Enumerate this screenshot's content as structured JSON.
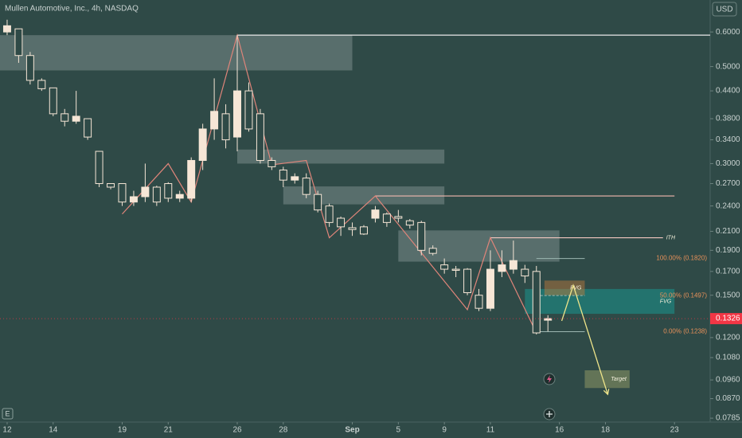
{
  "chart_data": {
    "type": "candlestick",
    "title": "Mullen Automotive, Inc., 4h, NASDAQ",
    "currency": "USD",
    "x": [
      0,
      1,
      2,
      3,
      4,
      5,
      6,
      7,
      8,
      9,
      10,
      11,
      12,
      13,
      14,
      15,
      16,
      17,
      18,
      19,
      20,
      21,
      22,
      23,
      24,
      25,
      26,
      27,
      28,
      29,
      30,
      31,
      32,
      33,
      34,
      35,
      36,
      37,
      38,
      39,
      40,
      41,
      42,
      43,
      44,
      45,
      46,
      47
    ],
    "open": [
      0.6,
      0.61,
      0.53,
      0.465,
      0.447,
      0.39,
      0.375,
      0.38,
      0.32,
      0.27,
      0.27,
      0.245,
      0.252,
      0.265,
      0.27,
      0.25,
      0.25,
      0.305,
      0.36,
      0.39,
      0.345,
      0.44,
      0.39,
      0.305,
      0.29,
      0.275,
      0.278,
      0.255,
      0.24,
      0.225,
      0.214,
      0.215,
      0.225,
      0.23,
      0.227,
      0.222,
      0.22,
      0.192,
      0.176,
      0.172,
      0.172,
      0.15,
      0.14,
      0.17,
      0.172,
      0.172,
      0.17,
      0.1315
    ],
    "high": [
      0.64,
      0.61,
      0.54,
      0.47,
      0.447,
      0.4,
      0.44,
      0.38,
      0.32,
      0.27,
      0.27,
      0.26,
      0.3,
      0.267,
      0.272,
      0.26,
      0.31,
      0.37,
      0.47,
      0.41,
      0.59,
      0.46,
      0.4,
      0.31,
      0.295,
      0.285,
      0.285,
      0.26,
      0.243,
      0.227,
      0.22,
      0.217,
      0.24,
      0.232,
      0.235,
      0.224,
      0.222,
      0.195,
      0.182,
      0.175,
      0.173,
      0.155,
      0.19,
      0.19,
      0.2,
      0.176,
      0.175,
      0.135
    ],
    "low": [
      0.59,
      0.51,
      0.455,
      0.44,
      0.385,
      0.365,
      0.37,
      0.34,
      0.265,
      0.262,
      0.24,
      0.24,
      0.245,
      0.24,
      0.245,
      0.245,
      0.245,
      0.29,
      0.34,
      0.325,
      0.32,
      0.355,
      0.3,
      0.29,
      0.265,
      0.27,
      0.25,
      0.232,
      0.215,
      0.205,
      0.205,
      0.206,
      0.22,
      0.215,
      0.22,
      0.213,
      0.185,
      0.185,
      0.168,
      0.165,
      0.15,
      0.138,
      0.138,
      0.165,
      0.168,
      0.16,
      0.122,
      0.124
    ],
    "close": [
      0.62,
      0.53,
      0.465,
      0.445,
      0.39,
      0.375,
      0.385,
      0.345,
      0.27,
      0.265,
      0.245,
      0.252,
      0.265,
      0.245,
      0.25,
      0.255,
      0.305,
      0.36,
      0.395,
      0.34,
      0.44,
      0.36,
      0.305,
      0.295,
      0.275,
      0.28,
      0.255,
      0.235,
      0.22,
      0.215,
      0.212,
      0.207,
      0.235,
      0.22,
      0.225,
      0.217,
      0.19,
      0.187,
      0.172,
      0.171,
      0.152,
      0.14,
      0.172,
      0.176,
      0.18,
      0.166,
      0.123,
      0.1326
    ],
    "xlim": [
      -0.62,
      61.1
    ],
    "xticks": [
      {
        "value": 0,
        "label": "12"
      },
      {
        "value": 4,
        "label": "14"
      },
      {
        "value": 10,
        "label": "19"
      },
      {
        "value": 14,
        "label": "21"
      },
      {
        "value": 20,
        "label": "26"
      },
      {
        "value": 24,
        "label": "28"
      },
      {
        "value": 30,
        "label": "Sep"
      },
      {
        "value": 34,
        "label": "5"
      },
      {
        "value": 38,
        "label": "9"
      },
      {
        "value": 42,
        "label": "11"
      },
      {
        "value": 48,
        "label": "16"
      },
      {
        "value": 52,
        "label": "18"
      },
      {
        "value": 58,
        "label": "23"
      }
    ],
    "ylim": [
      0.0769,
      0.71
    ],
    "yticks": [
      {
        "value": 0.6,
        "label": "0.6000"
      },
      {
        "value": 0.5,
        "label": "0.5000"
      },
      {
        "value": 0.44,
        "label": "0.4400"
      },
      {
        "value": 0.38,
        "label": "0.3800"
      },
      {
        "value": 0.34,
        "label": "0.3400"
      },
      {
        "value": 0.3,
        "label": "0.3000"
      },
      {
        "value": 0.27,
        "label": "0.2700"
      },
      {
        "value": 0.24,
        "label": "0.2400"
      },
      {
        "value": 0.21,
        "label": "0.2100"
      },
      {
        "value": 0.19,
        "label": "0.1900"
      },
      {
        "value": 0.17,
        "label": "0.1700"
      },
      {
        "value": 0.15,
        "label": "0.1500"
      },
      {
        "value": 0.12,
        "label": "0.1200"
      },
      {
        "value": 0.108,
        "label": "0.1080"
      },
      {
        "value": 0.096,
        "label": "0.0960"
      },
      {
        "value": 0.087,
        "label": "0.0870"
      },
      {
        "value": 0.0785,
        "label": "0.0785"
      }
    ],
    "log_scale": true,
    "colors": {
      "up": "#f6e6d6",
      "down": "#2f4a47",
      "edge": "#f6e6d6",
      "last": "#f23645",
      "zigzag": "#e0857a",
      "projection": "#efe58a",
      "fib_text": "#e8915a",
      "fib_line": "#9db7b2"
    },
    "last_price": 0.1326,
    "zones": [
      {
        "x": [
          -0.62,
          30
        ],
        "y": [
          0.49,
          0.59
        ],
        "color": "#8c9c9a"
      },
      {
        "x": [
          20,
          38
        ],
        "y": [
          0.3,
          0.323
        ],
        "color": "#8c9c9a"
      },
      {
        "x": [
          24,
          38
        ],
        "y": [
          0.242,
          0.266
        ],
        "color": "#8c9c9a"
      },
      {
        "x": [
          34,
          48
        ],
        "y": [
          0.179,
          0.211
        ],
        "color": "#8c9c9a"
      },
      {
        "x": [
          45,
          58
        ],
        "y": [
          0.136,
          0.155
        ],
        "color": "#17a79d",
        "label": "FVG"
      },
      {
        "x": [
          46.7,
          50.2
        ],
        "y": [
          0.15,
          0.162
        ],
        "color": "#c77d3a",
        "label": "FVG"
      },
      {
        "x": [
          50.2,
          54.1
        ],
        "y": [
          0.092,
          0.101
        ],
        "color": "#a3a86a",
        "label": "Target"
      }
    ],
    "levels": [
      {
        "value": 0.59,
        "x": [
          20,
          61.1
        ],
        "color": "#e8e8e8"
      },
      {
        "value": 0.253,
        "x": [
          32,
          58
        ],
        "color": "#f2b8ae"
      },
      {
        "value": 0.203,
        "x": [
          42,
          57
        ],
        "color": "#f2c7c0",
        "label": "ITH"
      }
    ],
    "zigzag": {
      "x": [
        10,
        14,
        16,
        20,
        23,
        26,
        28,
        32,
        40,
        42,
        46
      ],
      "y": [
        0.23,
        0.3,
        0.245,
        0.59,
        0.298,
        0.305,
        0.203,
        0.253,
        0.139,
        0.203,
        0.123
      ]
    },
    "projection": {
      "x": [
        48.2,
        49.2,
        52.2
      ],
      "y": [
        0.131,
        0.158,
        0.089
      ]
    },
    "fib_x": [
      46,
      50.2
    ],
    "fib": [
      {
        "value": 0.182,
        "label": "100.00% (0.1820)"
      },
      {
        "value": 0.1497,
        "label": "50.00% (0.1497)",
        "dashed": true
      },
      {
        "value": 0.1238,
        "label": "0.00% (0.1238)"
      }
    ]
  },
  "ui": {
    "e_button": "E"
  }
}
